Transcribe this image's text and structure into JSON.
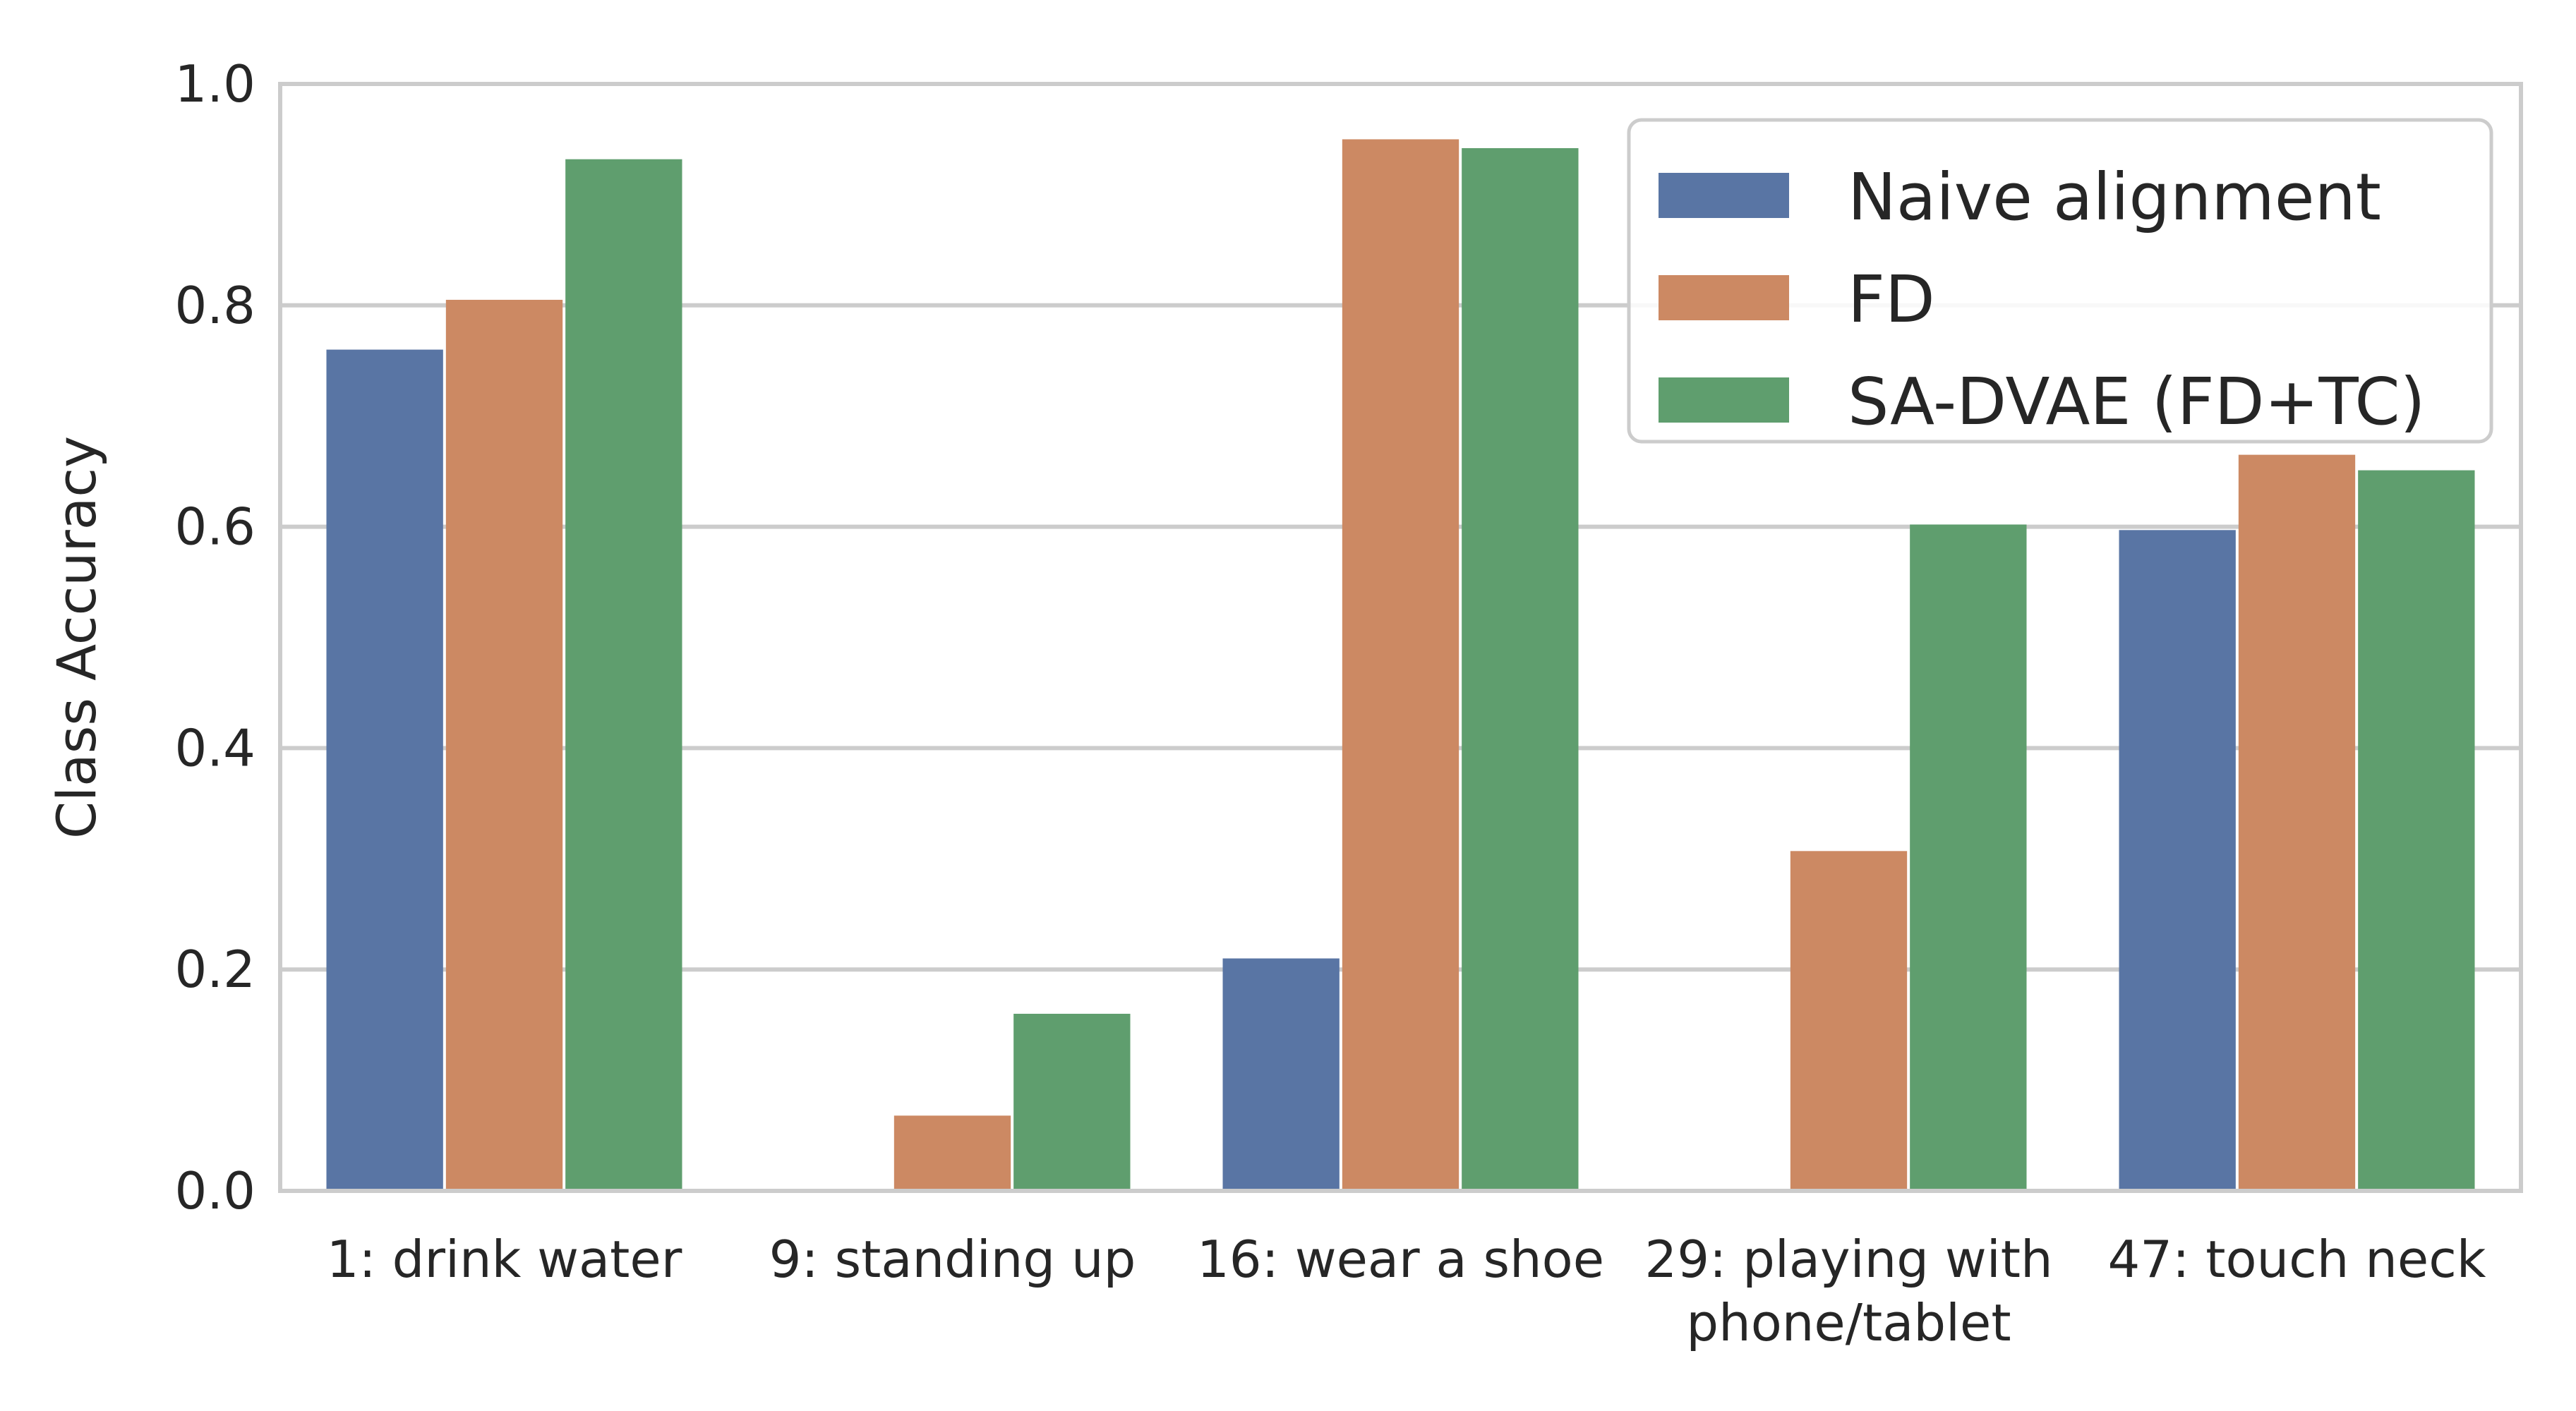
{
  "chart_data": {
    "type": "bar",
    "title": "",
    "xlabel": "",
    "ylabel": "Class Accuracy",
    "ylim": [
      0,
      1.0
    ],
    "yticks": [
      "0.0",
      "0.2",
      "0.4",
      "0.6",
      "0.8",
      "1.0"
    ],
    "grid": true,
    "legend_position": "top-right",
    "categories": [
      [
        "1: drink water"
      ],
      [
        "9: standing up"
      ],
      [
        "16: wear a shoe"
      ],
      [
        "29: playing with",
        "phone/tablet"
      ],
      [
        "47: touch neck"
      ]
    ],
    "series": [
      {
        "name": "Naive alignment",
        "color": "#5975a4",
        "values": [
          0.76,
          0.0,
          0.21,
          0.0,
          0.597
        ]
      },
      {
        "name": "FD",
        "color": "#cc8963",
        "values": [
          0.805,
          0.068,
          0.95,
          0.307,
          0.665
        ]
      },
      {
        "name": "SA-DVAE (FD+TC)",
        "color": "#5f9e6e",
        "values": [
          0.932,
          0.16,
          0.942,
          0.602,
          0.651
        ]
      }
    ]
  }
}
